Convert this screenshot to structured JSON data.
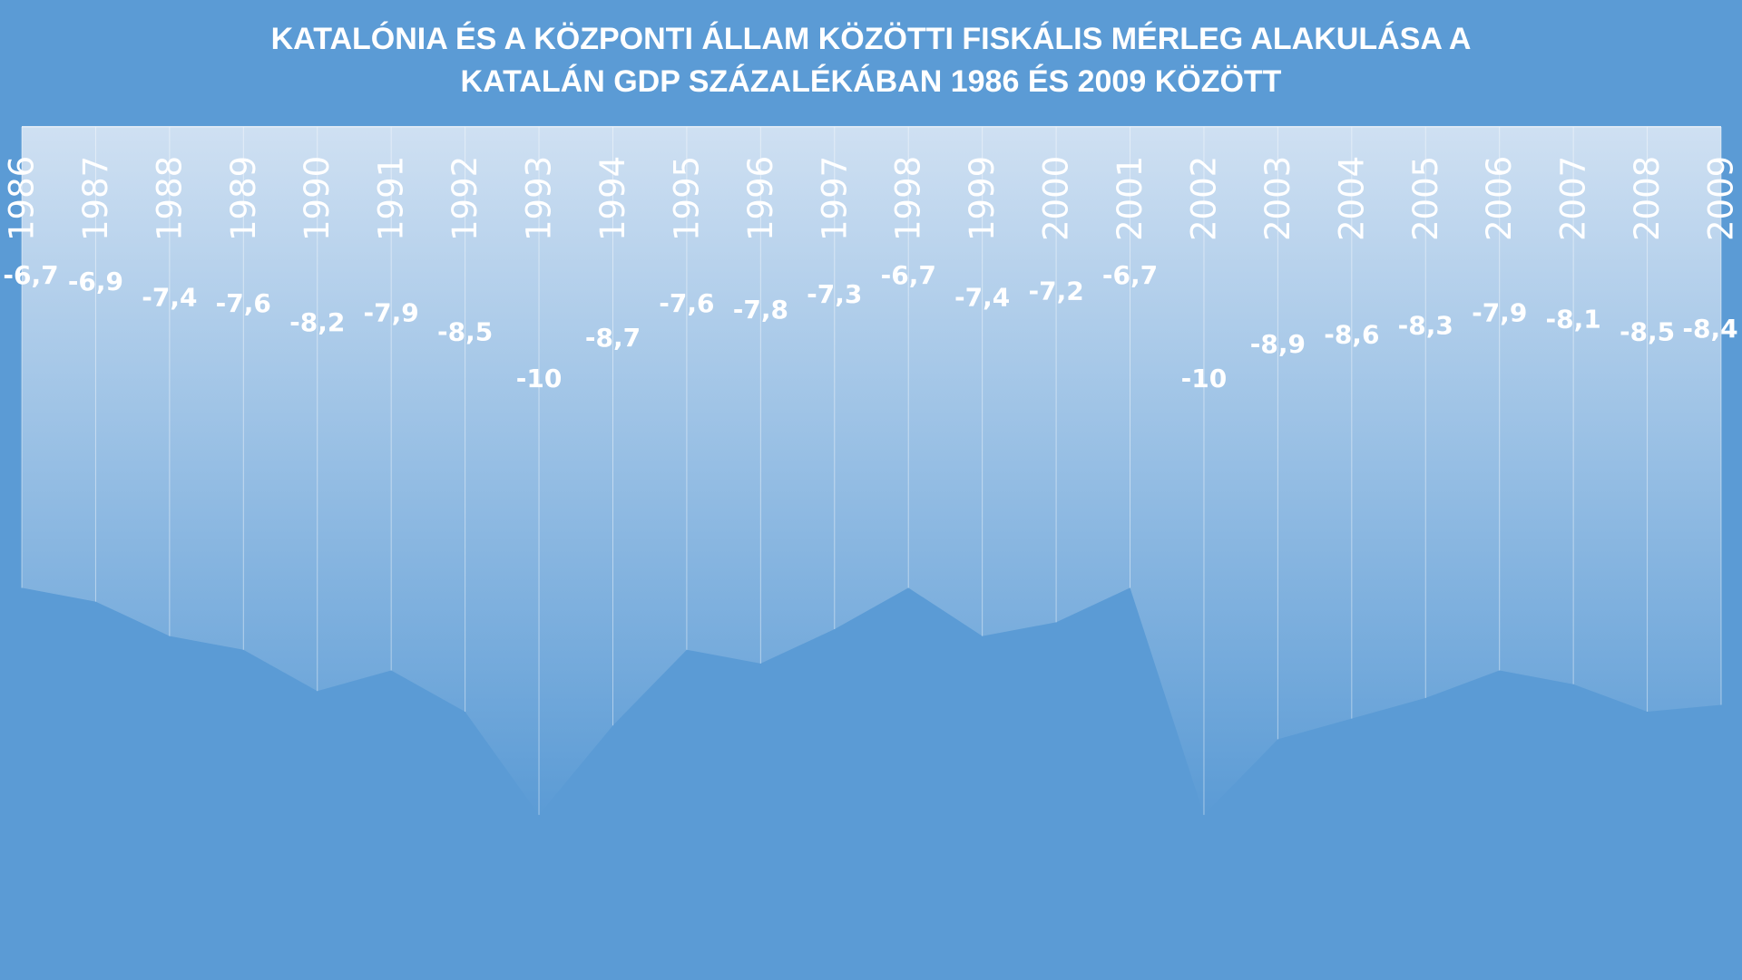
{
  "colors": {
    "background": "#5b9bd5",
    "area_fill_top": "#cfe0f2",
    "area_fill_bottom": "#5b9bd5",
    "text": "#ffffff",
    "gridline": "#ffffff"
  },
  "chart_data": {
    "type": "area",
    "title": "KATALÓNIA ÉS A KÖZPONTI ÁLLAM KÖZÖTTI FISKÁLIS MÉRLEG ALAKULÁSA A KATALÁN GDP SZÁZALÉKÁBAN 1986 ÉS 2009 KÖZÖTT",
    "title_lines": [
      "KATALÓNIA ÉS A KÖZPONTI ÁLLAM KÖZÖTTI FISKÁLIS MÉRLEG ALAKULÁSA A",
      "KATALÁN GDP SZÁZALÉKÁBAN 1986 ÉS 2009 KÖZÖTT"
    ],
    "xlabel": "",
    "ylabel": "",
    "categories": [
      "1986",
      "1987",
      "1988",
      "1989",
      "1990",
      "1991",
      "1992",
      "1993",
      "1994",
      "1995",
      "1996",
      "1997",
      "1998",
      "1999",
      "2000",
      "2001",
      "2002",
      "2003",
      "2004",
      "2005",
      "2006",
      "2007",
      "2008",
      "2009"
    ],
    "values": [
      -6.7,
      -6.9,
      -7.4,
      -7.6,
      -8.2,
      -7.9,
      -8.5,
      -10,
      -8.7,
      -7.6,
      -7.8,
      -7.3,
      -6.7,
      -7.4,
      -7.2,
      -6.7,
      -10,
      -8.9,
      -8.6,
      -8.3,
      -7.9,
      -8.1,
      -8.5,
      -8.4
    ],
    "data_labels": [
      "-6,7",
      "-6,9",
      "-7,4",
      "-7,6",
      "-8,2",
      "-7,9",
      "-8,5",
      "-10",
      "-8,7",
      "-7,6",
      "-7,8",
      "-7,3",
      "-6,7",
      "-7,4",
      "-7,2",
      "-6,7",
      "-10",
      "-8,9",
      "-8,6",
      "-8,3",
      "-7,9",
      "-8,1",
      "-8,5",
      "-8,4"
    ],
    "x_axis_position": "top",
    "tick_label_orientation": "vertical",
    "ylim": [
      -12.4,
      0
    ],
    "grid": "vertical",
    "legend": "none"
  }
}
